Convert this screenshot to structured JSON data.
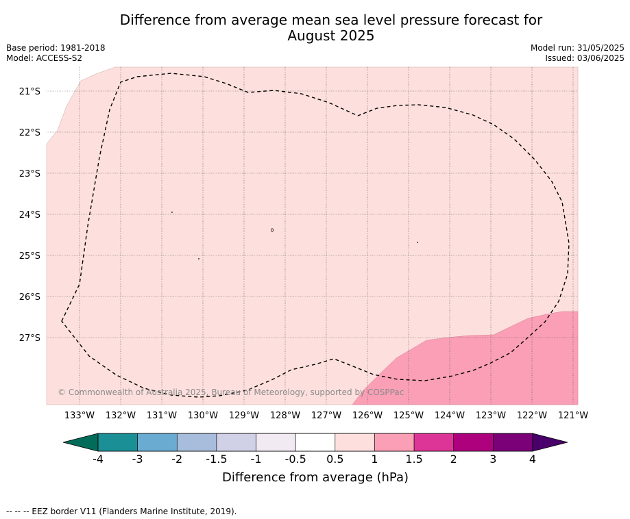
{
  "title_line1": "Difference from average mean sea level pressure forecast for",
  "title_line2": "August 2025",
  "base_period": "Base period: 1981-2018",
  "model": "Model: ACCESS-S2",
  "model_run": "Model run: 31/05/2025",
  "issued": "Issued: 03/06/2025",
  "copyright": "© Commonwealth of Australia 2025, Bureau of Meteorology, supported by COSPPac",
  "lon_labels": [
    "133°W",
    "132°W",
    "131°W",
    "130°W",
    "129°W",
    "128°W",
    "127°W",
    "126°W",
    "125°W",
    "124°W",
    "123°W",
    "122°W",
    "121°W"
  ],
  "lat_labels": [
    "21°S",
    "22°S",
    "23°S",
    "24°S",
    "25°S",
    "26°S",
    "27°S"
  ],
  "colorbar": {
    "label": "Difference from average (hPa)",
    "ticks": [
      "-4",
      "-3",
      "-2",
      "-1.5",
      "-1",
      "-0.5",
      "0.5",
      "1",
      "1.5",
      "2",
      "3",
      "4"
    ],
    "colors": [
      "#1a8f96",
      "#6aabd2",
      "#a8bcdb",
      "#d0d1e6",
      "#f1eaf2",
      "#ffffff",
      "#fde0dd",
      "#fa9fb5",
      "#dd3497",
      "#ae017e",
      "#7a0177"
    ],
    "extend_low": "#016c59",
    "extend_high": "#49006a"
  },
  "fill_colors": {
    "light": "#fde0dd",
    "medium": "#fa9fb5"
  },
  "footer": "--  --  -- EEZ border V11 (Flanders Marine Institute, 2019)."
}
